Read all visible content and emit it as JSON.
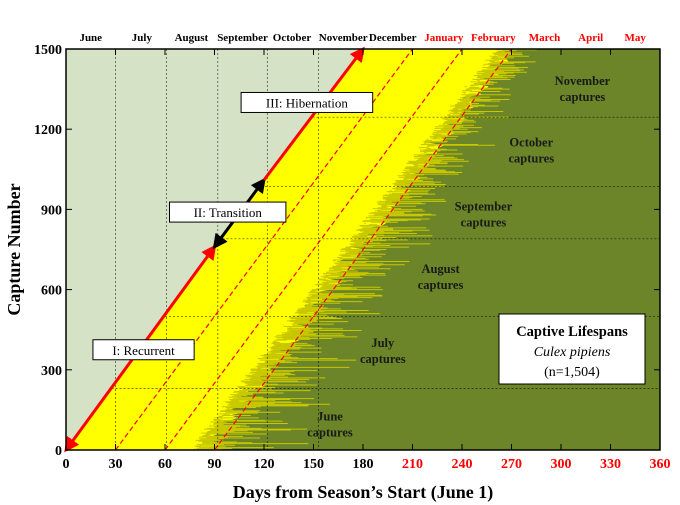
{
  "chart_data": {
    "type": "area",
    "xlabel": "Days from Season’s Start (June 1)",
    "ylabel": "Capture Number",
    "xlim": [
      0,
      360
    ],
    "ylim": [
      0,
      1500
    ],
    "x_ticks": [
      0,
      30,
      60,
      90,
      120,
      150,
      180,
      210,
      240,
      270,
      300,
      330,
      360
    ],
    "y_ticks": [
      0,
      300,
      600,
      900,
      1200,
      1500
    ],
    "x_ticks_highlight_from": 210,
    "top_month_labels": [
      {
        "label": "June",
        "x": 15,
        "highlight": false
      },
      {
        "label": "July",
        "x": 46,
        "highlight": false
      },
      {
        "label": "August",
        "x": 76,
        "highlight": false
      },
      {
        "label": "September",
        "x": 107,
        "highlight": false
      },
      {
        "label": "October",
        "x": 137,
        "highlight": false
      },
      {
        "label": "November",
        "x": 168,
        "highlight": false
      },
      {
        "label": "December",
        "x": 198,
        "highlight": false
      },
      {
        "label": "January",
        "x": 229,
        "highlight": true
      },
      {
        "label": "February",
        "x": 259,
        "highlight": true
      },
      {
        "label": "March",
        "x": 290,
        "highlight": true
      },
      {
        "label": "April",
        "x": 318,
        "highlight": true
      },
      {
        "label": "May",
        "x": 345,
        "highlight": true
      }
    ],
    "month_boundaries": [
      30,
      61,
      92,
      122,
      153
    ],
    "capture_month_boundaries": [
      230,
      500,
      790,
      985,
      1245
    ],
    "capture_month_labels": [
      {
        "line1": "June",
        "line2": "captures",
        "x": 160,
        "y": 100
      },
      {
        "line1": "July",
        "line2": "captures",
        "x": 192,
        "y": 375
      },
      {
        "line1": "August",
        "line2": "captures",
        "x": 227,
        "y": 650
      },
      {
        "line1": "September",
        "line2": "captures",
        "x": 253,
        "y": 885
      },
      {
        "line1": "October",
        "line2": "captures",
        "x": 282,
        "y": 1125
      },
      {
        "line1": "November",
        "line2": "captures",
        "x": 313,
        "y": 1355
      }
    ],
    "series": [
      {
        "name": "I: Recurrent",
        "x": [
          0,
          90
        ],
        "y": [
          0,
          760
        ]
      },
      {
        "name": "II: Transition",
        "x": [
          90,
          120
        ],
        "y": [
          760,
          1010
        ]
      },
      {
        "name": "III: Hibernation",
        "x": [
          120,
          180
        ],
        "y": [
          1010,
          1500
        ]
      }
    ],
    "dashed_lines": [
      {
        "x": [
          30,
          210
        ],
        "y": [
          0,
          1500
        ]
      },
      {
        "x": [
          60,
          240
        ],
        "y": [
          0,
          1500
        ]
      },
      {
        "x": [
          90,
          270
        ],
        "y": [
          0,
          1500
        ]
      }
    ],
    "lifespan_band": {
      "start_line": {
        "x": [
          0,
          180
        ],
        "y": [
          0,
          1500
        ]
      },
      "mean_end_line": {
        "x": [
          85,
          270
        ],
        "y": [
          0,
          1500
        ]
      },
      "max_end_line": {
        "x": [
          150,
          300
        ],
        "y": [
          0,
          1500
        ]
      }
    },
    "phase_labels": [
      {
        "text": "I: Recurrent",
        "x": 47,
        "y": 375
      },
      {
        "text": "II: Transition",
        "x": 98,
        "y": 890
      },
      {
        "text": "III: Hibernation",
        "x": 146,
        "y": 1300
      }
    ],
    "info_box": {
      "title": "Captive Lifespans",
      "species": "Culex pipiens",
      "n": "(n=1,504)"
    },
    "colors": {
      "plot_bg": "#d6e2c6",
      "yellow_band": "#ffff00",
      "captures_bg": "#6b8528",
      "lifespan_lines": "#c8c800",
      "phase_arrow": "#ff0000",
      "transition_arrow": "#000000",
      "highlight_text": "#ff0000"
    }
  }
}
